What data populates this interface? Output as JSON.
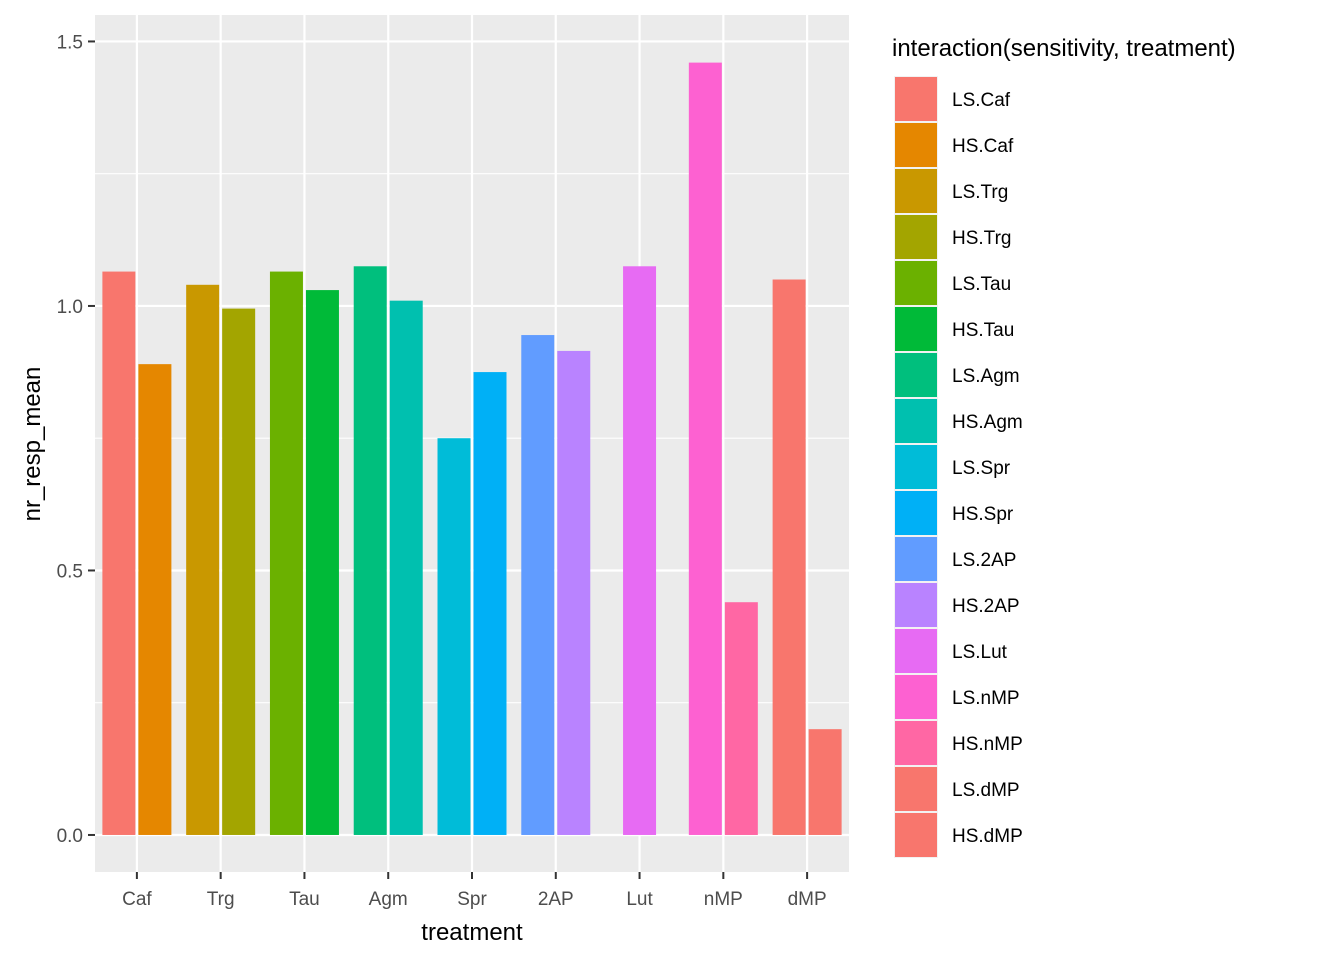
{
  "chart_data": {
    "type": "bar",
    "xlabel": "treatment",
    "ylabel": "nr_resp_mean",
    "ylim": [
      -0.07,
      1.55
    ],
    "y_ticks": [
      {
        "value": 0.0,
        "label": "0.0"
      },
      {
        "value": 0.5,
        "label": "0.5"
      },
      {
        "value": 1.0,
        "label": "1.0"
      },
      {
        "value": 1.5,
        "label": "1.5"
      }
    ],
    "y_minor_ticks": [
      0.25,
      0.75,
      1.25
    ],
    "categories": [
      "Caf",
      "Trg",
      "Tau",
      "Agm",
      "Spr",
      "2AP",
      "Lut",
      "nMP",
      "dMP"
    ],
    "grid": true,
    "legend_position": "right",
    "legend_title": "interaction(sensitivity, treatment)",
    "bars": [
      {
        "category": "Caf",
        "group": "LS.Caf",
        "value": 1.065,
        "color": "#F8766D"
      },
      {
        "category": "Caf",
        "group": "HS.Caf",
        "value": 0.89,
        "color": "#E58700"
      },
      {
        "category": "Trg",
        "group": "LS.Trg",
        "value": 1.04,
        "color": "#C99800"
      },
      {
        "category": "Trg",
        "group": "HS.Trg",
        "value": 0.995,
        "color": "#A3A500"
      },
      {
        "category": "Tau",
        "group": "LS.Tau",
        "value": 1.065,
        "color": "#6BB100"
      },
      {
        "category": "Tau",
        "group": "HS.Tau",
        "value": 1.03,
        "color": "#00BA38"
      },
      {
        "category": "Agm",
        "group": "LS.Agm",
        "value": 1.075,
        "color": "#00BF7D"
      },
      {
        "category": "Agm",
        "group": "HS.Agm",
        "value": 1.01,
        "color": "#00C0AF"
      },
      {
        "category": "Spr",
        "group": "LS.Spr",
        "value": 0.75,
        "color": "#00BCD8"
      },
      {
        "category": "Spr",
        "group": "HS.Spr",
        "value": 0.875,
        "color": "#00B0F6"
      },
      {
        "category": "2AP",
        "group": "LS.2AP",
        "value": 0.945,
        "color": "#619CFF"
      },
      {
        "category": "2AP",
        "group": "HS.2AP",
        "value": 0.915,
        "color": "#B983FF"
      },
      {
        "category": "Lut",
        "group": "LS.Lut",
        "value": 1.075,
        "color": "#E76BF3"
      },
      {
        "category": "nMP",
        "group": "LS.nMP",
        "value": 1.46,
        "color": "#FD61D1"
      },
      {
        "category": "nMP",
        "group": "HS.nMP",
        "value": 0.44,
        "color": "#FF67A4"
      },
      {
        "category": "dMP",
        "group": "LS.dMP",
        "value": 1.05,
        "color": "#F8766D"
      },
      {
        "category": "dMP",
        "group": "HS.dMP",
        "value": 0.2,
        "color": "#F8766D"
      }
    ],
    "legend": [
      {
        "label": "LS.Caf",
        "color": "#F8766D"
      },
      {
        "label": "HS.Caf",
        "color": "#E58700"
      },
      {
        "label": "LS.Trg",
        "color": "#C99800"
      },
      {
        "label": "HS.Trg",
        "color": "#A3A500"
      },
      {
        "label": "LS.Tau",
        "color": "#6BB100"
      },
      {
        "label": "HS.Tau",
        "color": "#00BA38"
      },
      {
        "label": "LS.Agm",
        "color": "#00BF7D"
      },
      {
        "label": "HS.Agm",
        "color": "#00C0AF"
      },
      {
        "label": "LS.Spr",
        "color": "#00BCD8"
      },
      {
        "label": "HS.Spr",
        "color": "#00B0F6"
      },
      {
        "label": "LS.2AP",
        "color": "#619CFF"
      },
      {
        "label": "HS.2AP",
        "color": "#B983FF"
      },
      {
        "label": "LS.Lut",
        "color": "#E76BF3"
      },
      {
        "label": "LS.nMP",
        "color": "#FD61D1"
      },
      {
        "label": "HS.nMP",
        "color": "#FF67A4"
      },
      {
        "label": "LS.dMP",
        "color": "#F8766D"
      },
      {
        "label": "HS.dMP",
        "color": "#F8766D"
      }
    ]
  }
}
